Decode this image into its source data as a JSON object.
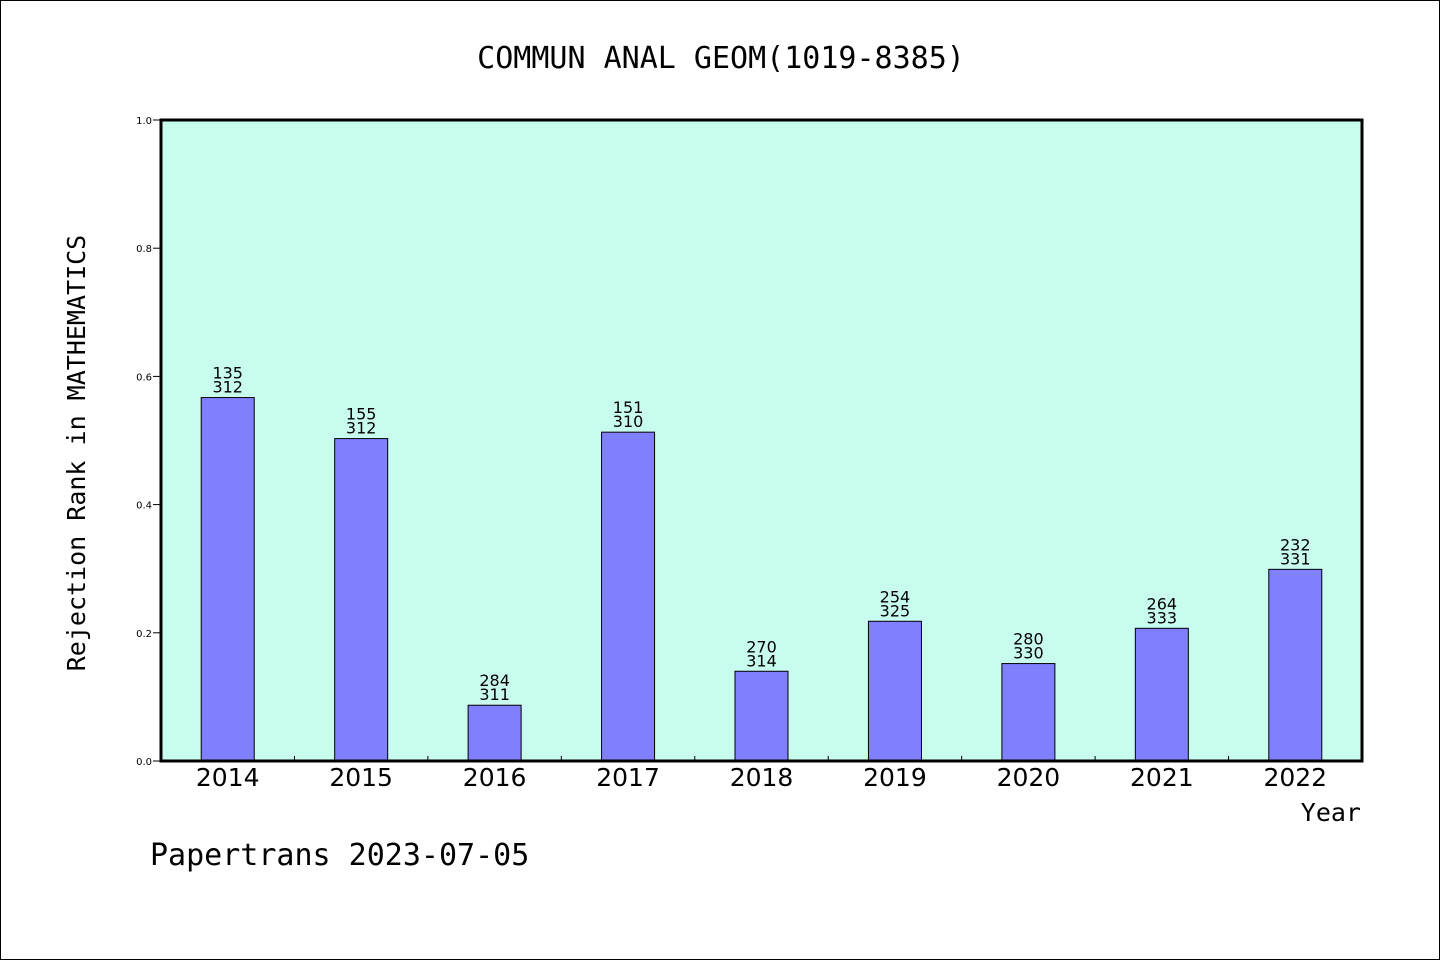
{
  "chart_data": {
    "type": "bar",
    "title": "COMMUN ANAL GEOM(1019-8385)",
    "xlabel": "Year",
    "ylabel": "Rejection Rank in MATHEMATICS",
    "ylim": [
      0,
      1.0
    ],
    "yticks": [
      "0.0",
      "0.2",
      "0.4",
      "0.6",
      "0.8",
      "1.0"
    ],
    "categories": [
      "2014",
      "2015",
      "2016",
      "2017",
      "2018",
      "2019",
      "2020",
      "2021",
      "2022"
    ],
    "values": [
      0.567,
      0.503,
      0.087,
      0.513,
      0.14,
      0.218,
      0.152,
      0.207,
      0.299
    ],
    "labels_top": [
      "135",
      "155",
      "284",
      "151",
      "270",
      "254",
      "280",
      "264",
      "232"
    ],
    "labels_bottom": [
      "312",
      "312",
      "311",
      "310",
      "314",
      "325",
      "330",
      "333",
      "331"
    ],
    "grid": false,
    "colors": {
      "plot_background": "#c8fcee",
      "bar_fill": "#8080ff",
      "bar_stroke": "#000000"
    }
  },
  "footer": "Papertrans 2023-07-05"
}
